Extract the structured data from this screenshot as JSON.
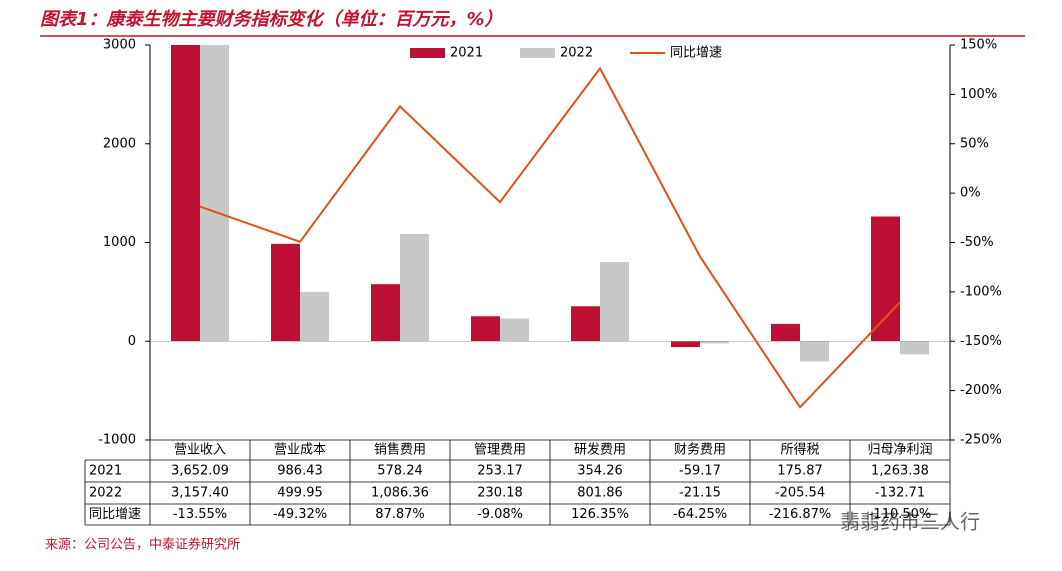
{
  "chart_data": {
    "type": "bar",
    "title": "图表1：康泰生物主要财务指标变化（单位：百万元，%）",
    "categories": [
      "营业收入",
      "营业成本",
      "销售费用",
      "管理费用",
      "研发费用",
      "财务费用",
      "所得税",
      "归母净利润"
    ],
    "series": [
      {
        "name": "2021",
        "color": "#be0f34",
        "values": [
          3652.09,
          986.43,
          578.24,
          253.17,
          354.26,
          -59.17,
          175.87,
          1263.38
        ],
        "value_labels": [
          "3,652.09",
          "986.43",
          "578.24",
          "253.17",
          "354.26",
          "-59.17",
          "175.87",
          "1,263.38"
        ]
      },
      {
        "name": "2022",
        "color": "#c8c8c8",
        "values": [
          3157.4,
          499.95,
          1086.36,
          230.18,
          801.86,
          -21.15,
          -205.54,
          -132.71
        ],
        "value_labels": [
          "3,157.40",
          "499.95",
          "1,086.36",
          "230.18",
          "801.86",
          "-21.15",
          "-205.54",
          "-132.71"
        ]
      },
      {
        "name": "同比增速",
        "type": "line",
        "axis": "y2",
        "color": "#e0501a",
        "values": [
          -13.55,
          -49.32,
          87.87,
          -9.08,
          126.35,
          -64.25,
          -216.87,
          -110.5
        ],
        "value_labels": [
          "-13.55%",
          "-49.32%",
          "87.87%",
          "-9.08%",
          "126.35%",
          "-64.25%",
          "-216.87%",
          "-110.50%"
        ]
      }
    ],
    "ylim": [
      -1000,
      3000
    ],
    "yticks": [
      -1000,
      0,
      1000,
      2000,
      3000
    ],
    "y2lim": [
      -250,
      150
    ],
    "y2ticks": [
      {
        "value": -250,
        "label": "-250%"
      },
      {
        "value": -200,
        "label": "-200%"
      },
      {
        "value": -150,
        "label": "-150%"
      },
      {
        "value": -100,
        "label": "-100%"
      },
      {
        "value": -50,
        "label": "-50%"
      },
      {
        "value": 0,
        "label": "0%"
      },
      {
        "value": 50,
        "label": "50%"
      },
      {
        "value": 100,
        "label": "100%"
      },
      {
        "value": 150,
        "label": "150%"
      }
    ],
    "legend": "top",
    "source": "来源：公司公告，中泰证券研究所"
  },
  "watermark": "翡翡药市三人行"
}
